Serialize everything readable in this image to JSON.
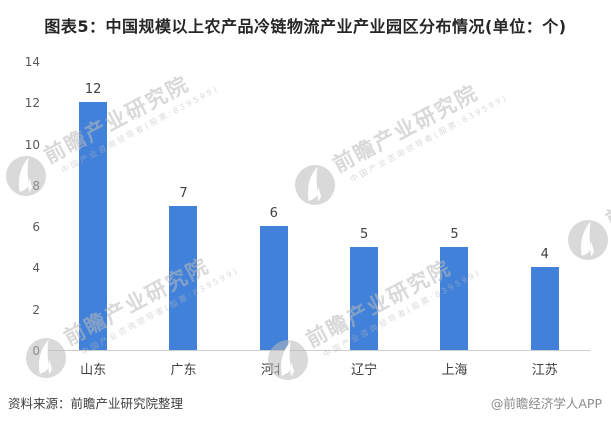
{
  "title": "图表5：中国规模以上农产品冷链物流产业产业园区分布情况(单位：个)",
  "chart_data": {
    "type": "bar",
    "title": "图表5：中国规模以上农产品冷链物流产业产业园区分布情况(单位：个)",
    "categories": [
      "山东",
      "广东",
      "河北",
      "辽宁",
      "上海",
      "江苏"
    ],
    "values": [
      12,
      7,
      6,
      5,
      5,
      4
    ],
    "xlabel": "",
    "ylabel": "",
    "ylim": [
      0,
      14
    ],
    "yticks": [
      0,
      2,
      4,
      6,
      8,
      10,
      12,
      14
    ],
    "bar_color": "#4181d9",
    "grid": false,
    "legend": false,
    "data_labels": true
  },
  "watermark": {
    "brand": "前瞻产业研究院",
    "tagline": "中国产业咨询领导者(股票:839599)"
  },
  "footer": {
    "source": "资料来源：前瞻产业研究院整理",
    "attribution": "@前瞻经济学人APP"
  }
}
